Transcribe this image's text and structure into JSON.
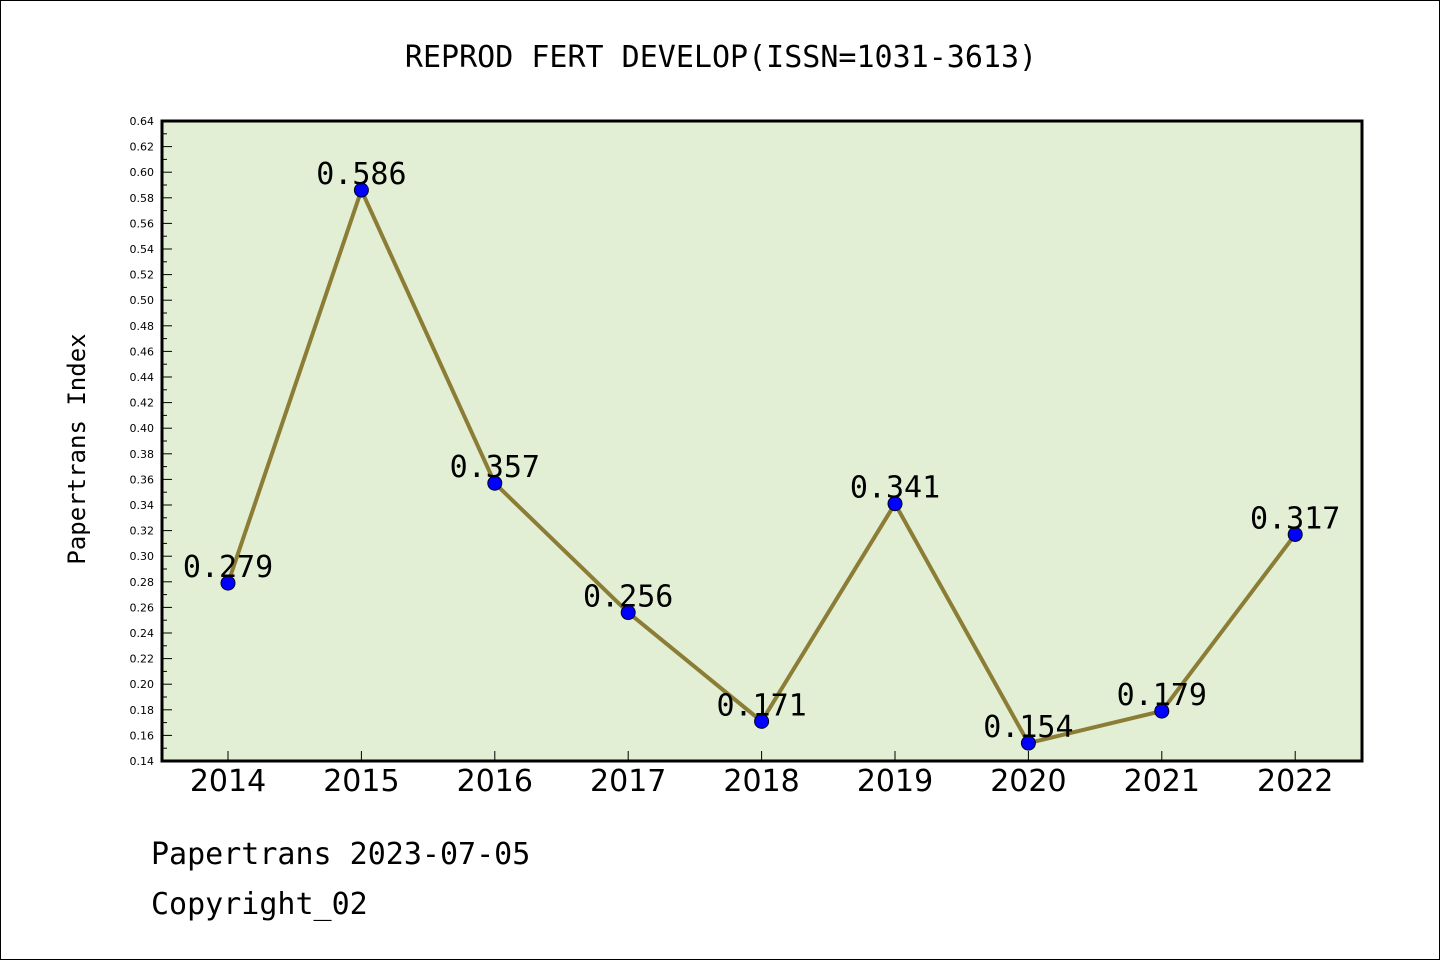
{
  "chart_data": {
    "type": "line",
    "title": "REPROD FERT DEVELOP(ISSN=1031-3613)",
    "xlabel": "",
    "ylabel": "Papertrans Index",
    "categories": [
      "2014",
      "2015",
      "2016",
      "2017",
      "2018",
      "2019",
      "2020",
      "2021",
      "2022"
    ],
    "series": [
      {
        "values": [
          0.279,
          0.586,
          0.357,
          0.256,
          0.171,
          0.341,
          0.154,
          0.179,
          0.317
        ]
      }
    ],
    "data_labels": [
      "0.279",
      "0.586",
      "0.357",
      "0.256",
      "0.171",
      "0.341",
      "0.154",
      "0.179",
      "0.317"
    ],
    "ylim": [
      0.14,
      0.64
    ],
    "yticks": [
      "0.14",
      "0.16",
      "0.18",
      "0.20",
      "0.22",
      "0.24",
      "0.26",
      "0.28",
      "0.30",
      "0.32",
      "0.34",
      "0.36",
      "0.38",
      "0.40",
      "0.42",
      "0.44",
      "0.46",
      "0.48",
      "0.50",
      "0.52",
      "0.54",
      "0.56",
      "0.58",
      "0.60",
      "0.62",
      "0.64"
    ],
    "grid": false,
    "colors": {
      "plot_background": "#e2efd5",
      "line": "#8b7d35",
      "marker": "#0000ff"
    }
  },
  "footer": {
    "line1": "Papertrans 2023-07-05",
    "line2": "Copyright_02"
  }
}
